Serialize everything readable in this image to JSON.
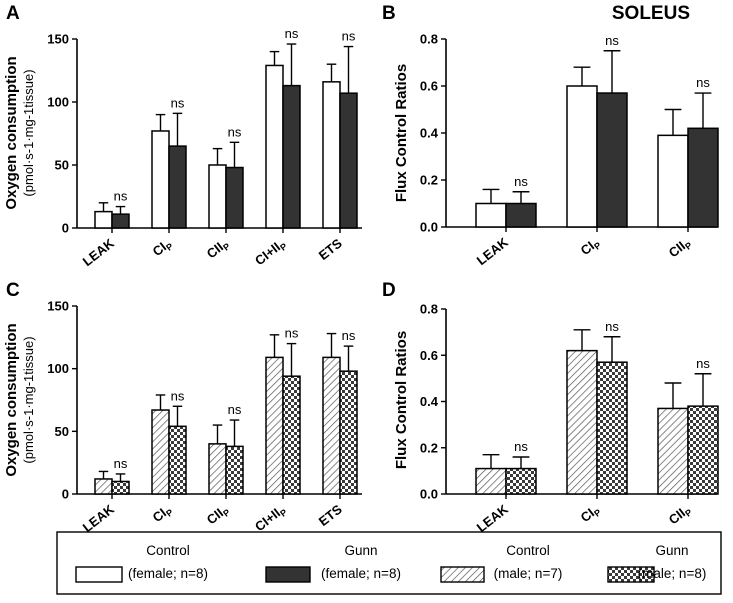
{
  "figure_title": "SOLEUS",
  "styles": {
    "control_female": {
      "fill": "#ffffff"
    },
    "gunn_female": {
      "fill": "#333333"
    },
    "control_male": {
      "fill": "url(#hatch)"
    },
    "gunn_male": {
      "fill": "url(#checker)"
    }
  },
  "legend": [
    {
      "series": "control_female",
      "line1": "Control",
      "line2": "(female; n=8)"
    },
    {
      "series": "gunn_female",
      "line1": "Gunn",
      "line2": "(female; n=8)"
    },
    {
      "series": "control_male",
      "line1": "Control",
      "line2": "(male; n=7)"
    },
    {
      "series": "gunn_male",
      "line1": "Gunn",
      "line2": "(male; n=8)"
    }
  ],
  "chart_data": [
    {
      "panel": "A",
      "type": "bar",
      "ylabel": "Oxygen consumption",
      "ylabel_sub": "(pmol·s-1·mg-1tissue)",
      "ylim": [
        0,
        150
      ],
      "yticks": [
        0,
        50,
        100,
        150
      ],
      "tick_labels": [
        "0",
        "50",
        "100",
        "150"
      ],
      "categories": [
        "LEAK",
        "CIP",
        "CIIP",
        "CI+IIP",
        "ETS"
      ],
      "cat_labels": [
        {
          "main": "LEAK",
          "sub": ""
        },
        {
          "main": "CI",
          "sub": "P"
        },
        {
          "main": "CII",
          "sub": "P"
        },
        {
          "main": "CI+II",
          "sub": "P"
        },
        {
          "main": "ETS",
          "sub": ""
        }
      ],
      "series": [
        {
          "key": "control_female",
          "name": "Control (female; n=8)",
          "values": [
            13,
            77,
            50,
            129,
            116
          ],
          "errors": [
            7,
            13,
            13,
            11,
            14
          ]
        },
        {
          "key": "gunn_female",
          "name": "Gunn (female; n=8)",
          "values": [
            11,
            65,
            48,
            113,
            107
          ],
          "errors": [
            6,
            26,
            20,
            33,
            37
          ]
        }
      ],
      "annotations": [
        "ns",
        "ns",
        "ns",
        "ns",
        "ns"
      ]
    },
    {
      "panel": "B",
      "type": "bar",
      "ylabel": "Flux Control Ratios",
      "ylabel_sub": "",
      "ylim": [
        0,
        0.8
      ],
      "yticks": [
        0,
        0.2,
        0.4,
        0.6,
        0.8
      ],
      "tick_labels": [
        "0.0",
        "0.2",
        "0.4",
        "0.6",
        "0.8"
      ],
      "categories": [
        "LEAK",
        "CIP",
        "CIIP"
      ],
      "cat_labels": [
        {
          "main": "LEAK",
          "sub": ""
        },
        {
          "main": "CI",
          "sub": "P"
        },
        {
          "main": "CII",
          "sub": "P"
        }
      ],
      "series": [
        {
          "key": "control_female",
          "name": "Control (female; n=8)",
          "values": [
            0.1,
            0.6,
            0.39
          ],
          "errors": [
            0.06,
            0.08,
            0.11
          ]
        },
        {
          "key": "gunn_female",
          "name": "Gunn (female; n=8)",
          "values": [
            0.1,
            0.57,
            0.42
          ],
          "errors": [
            0.05,
            0.18,
            0.15
          ]
        }
      ],
      "annotations": [
        "ns",
        "ns",
        "ns"
      ]
    },
    {
      "panel": "C",
      "type": "bar",
      "ylabel": "Oxygen consumption",
      "ylabel_sub": "(pmol·s-1·mg-1tissue)",
      "ylim": [
        0,
        150
      ],
      "yticks": [
        0,
        50,
        100,
        150
      ],
      "tick_labels": [
        "0",
        "50",
        "100",
        "150"
      ],
      "categories": [
        "LEAK",
        "CIP",
        "CIIP",
        "CI+IIP",
        "ETS"
      ],
      "cat_labels": [
        {
          "main": "LEAK",
          "sub": ""
        },
        {
          "main": "CI",
          "sub": "P"
        },
        {
          "main": "CII",
          "sub": "P"
        },
        {
          "main": "CI+II",
          "sub": "P"
        },
        {
          "main": "ETS",
          "sub": ""
        }
      ],
      "series": [
        {
          "key": "control_male",
          "name": "Control (male; n=7)",
          "values": [
            12,
            67,
            40,
            109,
            109
          ],
          "errors": [
            6,
            12,
            15,
            18,
            19
          ]
        },
        {
          "key": "gunn_male",
          "name": "Gunn (male; n=8)",
          "values": [
            10,
            54,
            38,
            94,
            98
          ],
          "errors": [
            6,
            16,
            21,
            26,
            20
          ]
        }
      ],
      "annotations": [
        "ns",
        "ns",
        "ns",
        "ns",
        "ns"
      ]
    },
    {
      "panel": "D",
      "type": "bar",
      "ylabel": "Flux Control Ratios",
      "ylabel_sub": "",
      "ylim": [
        0,
        0.8
      ],
      "yticks": [
        0,
        0.2,
        0.4,
        0.6,
        0.8
      ],
      "tick_labels": [
        "0.0",
        "0.2",
        "0.4",
        "0.6",
        "0.8"
      ],
      "categories": [
        "LEAK",
        "CIP",
        "CIIP"
      ],
      "cat_labels": [
        {
          "main": "LEAK",
          "sub": ""
        },
        {
          "main": "CI",
          "sub": "P"
        },
        {
          "main": "CII",
          "sub": "P"
        }
      ],
      "series": [
        {
          "key": "control_male",
          "name": "Control (male; n=7)",
          "values": [
            0.11,
            0.62,
            0.37
          ],
          "errors": [
            0.06,
            0.09,
            0.11
          ]
        },
        {
          "key": "gunn_male",
          "name": "Gunn (male; n=8)",
          "values": [
            0.11,
            0.57,
            0.38
          ],
          "errors": [
            0.05,
            0.11,
            0.14
          ]
        }
      ],
      "annotations": [
        "ns",
        "ns",
        "ns"
      ]
    }
  ]
}
